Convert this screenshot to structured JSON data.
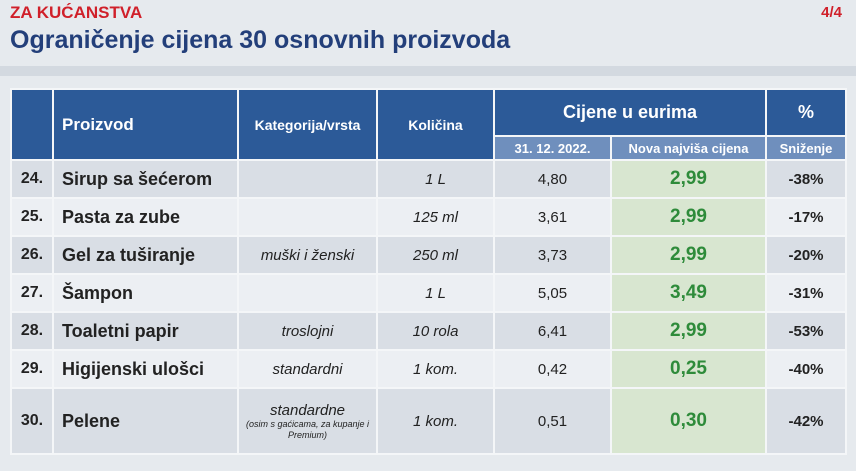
{
  "header": {
    "section": "ZA KUĆANSTVA",
    "page": "4/4",
    "title": "Ograničenje cijena 30 osnovnih proizvoda"
  },
  "table": {
    "columns": {
      "product": "Proizvod",
      "category": "Kategorija/vrsta",
      "quantity": "Količina",
      "prices": "Cijene u eurima",
      "old": "31. 12. 2022.",
      "new": "Nova najviša cijena",
      "pct": "%",
      "reduction": "Sniženje"
    },
    "rows": [
      [
        "24.",
        "Sirup sa šećerom",
        [],
        "1 L",
        "4,80",
        "2,99",
        "-38%"
      ],
      [
        "25.",
        "Pasta za zube",
        [],
        "125 ml",
        "3,61",
        "2,99",
        "-17%"
      ],
      [
        "26.",
        "Gel za tuširanje",
        [
          "muški i ženski"
        ],
        "250 ml",
        "3,73",
        "2,99",
        "-20%"
      ],
      [
        "27.",
        "Šampon",
        [],
        "1 L",
        "5,05",
        "3,49",
        "-31%"
      ],
      [
        "28.",
        "Toaletni papir",
        [
          "troslojni"
        ],
        "10 rola",
        "6,41",
        "2,99",
        "-53%"
      ],
      [
        "29.",
        "Higijenski ulošci",
        [
          "standardni"
        ],
        "1 kom.",
        "0,42",
        "0,25",
        "-40%"
      ],
      [
        "30.",
        "Pelene",
        [
          "standardne",
          "(osim s gaćicama, za kupanje i Premium)"
        ],
        "1 kom.",
        "0,51",
        "0,30",
        "-42%"
      ]
    ]
  }
}
